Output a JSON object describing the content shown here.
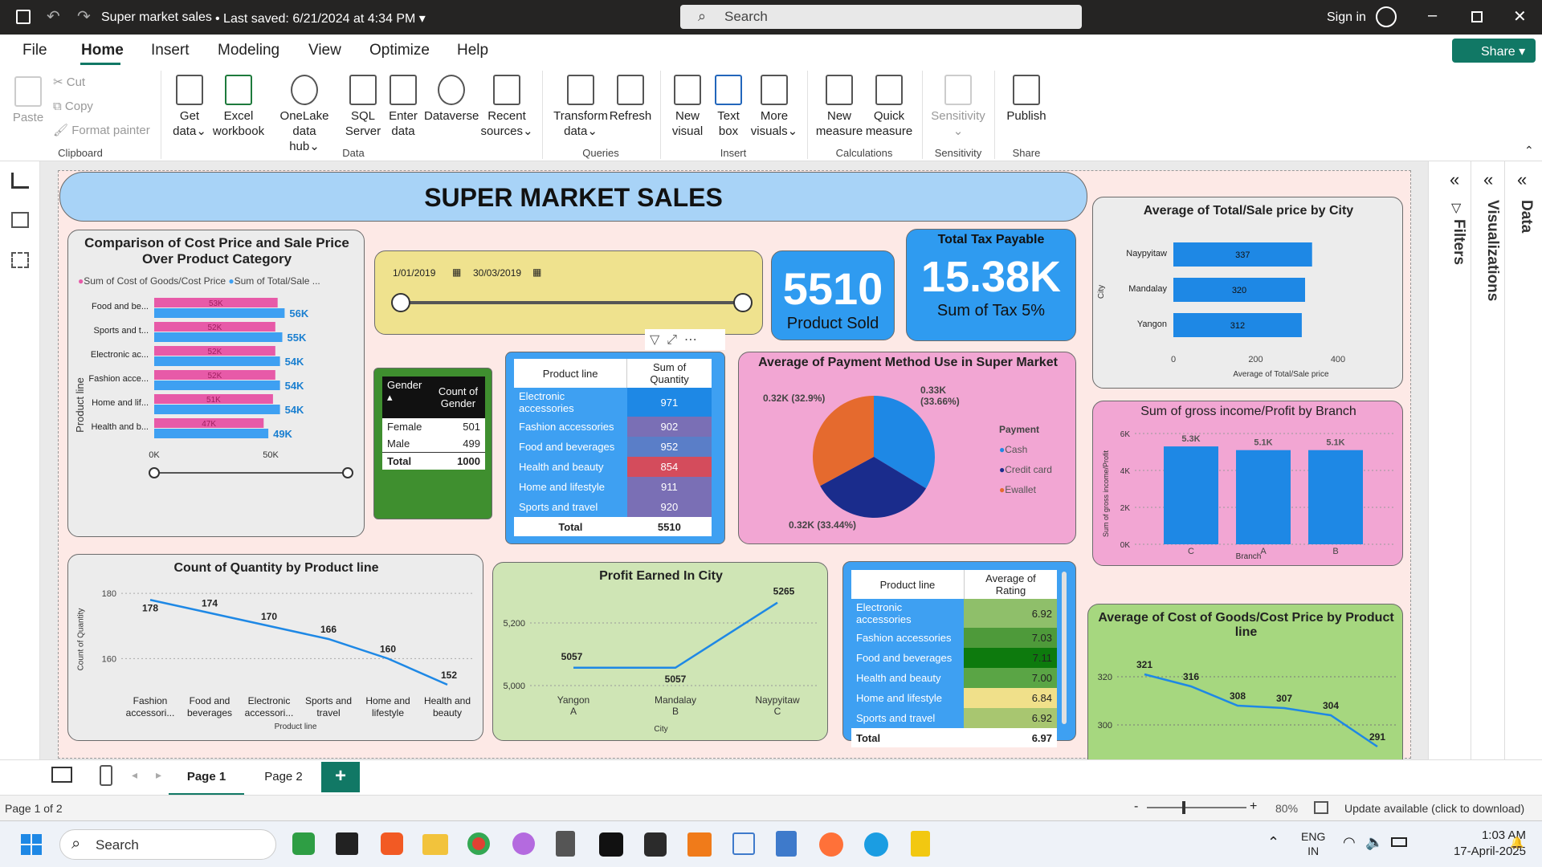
{
  "titlebar": {
    "title": "Super market sales",
    "saved": "Last saved: 6/21/2024 at 4:34 PM",
    "search": "Search",
    "signin": "Sign in"
  },
  "menu": {
    "items": [
      "File",
      "Home",
      "Insert",
      "Modeling",
      "View",
      "Optimize",
      "Help"
    ],
    "share": "Share"
  },
  "ribbon": {
    "clipboard": {
      "paste": "Paste",
      "cut": "Cut",
      "copy": "Copy",
      "format": "Format painter",
      "group": "Clipboard"
    },
    "data": {
      "get": "Get",
      "get2": "data",
      "excel": "Excel",
      "excel2": "workbook",
      "onelake": "OneLake data",
      "onelake2": "hub",
      "sql": "SQL",
      "sql2": "Server",
      "enter": "Enter",
      "enter2": "data",
      "dataverse": "Dataverse",
      "recent": "Recent",
      "recent2": "sources",
      "group": "Data"
    },
    "queries": {
      "transform": "Transform",
      "transform2": "data",
      "refresh": "Refresh",
      "group": "Queries"
    },
    "insert": {
      "newv": "New",
      "newv2": "visual",
      "text": "Text",
      "text2": "box",
      "more": "More",
      "more2": "visuals",
      "group": "Insert"
    },
    "calc": {
      "newm": "New",
      "newm2": "measure",
      "quick": "Quick",
      "quick2": "measure",
      "group": "Calculations"
    },
    "sens": {
      "label": "Sensitivity",
      "group": "Sensitivity"
    },
    "share": {
      "publish": "Publish",
      "group": "Share"
    }
  },
  "report": {
    "title": "SUPER MARKET SALES",
    "slicer": {
      "from": "1/01/2019",
      "to": "30/03/2019"
    },
    "kpi1": {
      "value": "5510",
      "label": "Product Sold"
    },
    "kpi2": {
      "title": "Total Tax Payable",
      "value": "15.38K",
      "label": "Sum of Tax 5%"
    },
    "costsale": {
      "title": "Comparison of Cost Price and Sale Price Over Product Category",
      "legend1": "Sum of Cost of Goods/Cost Price",
      "legend2": "Sum of Total/Sale ...",
      "ylabel": "Product line",
      "xticks": [
        "0K",
        "50K"
      ],
      "rows": [
        {
          "cat": "Food and be...",
          "a": "53K",
          "b": "56K",
          "av": 53,
          "bv": 56
        },
        {
          "cat": "Sports and t...",
          "a": "52K",
          "b": "55K",
          "av": 52,
          "bv": 55
        },
        {
          "cat": "Electronic ac...",
          "a": "52K",
          "b": "54K",
          "av": 52,
          "bv": 54
        },
        {
          "cat": "Fashion acce...",
          "a": "52K",
          "b": "54K",
          "av": 52,
          "bv": 54
        },
        {
          "cat": "Home and lif...",
          "a": "51K",
          "b": "54K",
          "av": 51,
          "bv": 54
        },
        {
          "cat": "Health and b...",
          "a": "47K",
          "b": "49K",
          "av": 47,
          "bv": 49
        }
      ]
    },
    "gender": {
      "h1": "Gender",
      "h2": "Count of",
      "h2b": "Gender",
      "rows": [
        [
          "Female",
          "501"
        ],
        [
          "Male",
          "499"
        ]
      ],
      "total": [
        "Total",
        "1000"
      ]
    },
    "qty": {
      "h1": "Product line",
      "h2": "Sum of Quantity",
      "rows": [
        [
          "Electronic accessories",
          "971",
          "#1e88e5"
        ],
        [
          "Fashion accessories",
          "902",
          "#7a6fb5"
        ],
        [
          "Food and beverages",
          "952",
          "#5a7ec8"
        ],
        [
          "Health and beauty",
          "854",
          "#d44c5c"
        ],
        [
          "Home and lifestyle",
          "911",
          "#7a6fb5"
        ],
        [
          "Sports and travel",
          "920",
          "#7a6fb5"
        ]
      ],
      "total": [
        "Total",
        "5510"
      ]
    },
    "payment": {
      "title": "Average of Payment Method Use in Super Market",
      "legend_title": "Payment",
      "labels": [
        "Cash",
        "Credit card",
        "Ewallet"
      ],
      "l1": "0.32K (32.9%)",
      "l2": "0.33K",
      "l2b": "(33.66%)",
      "l3": "0.32K (33.44%)"
    },
    "city": {
      "title": "Average of Total/Sale price by City",
      "ylabel": "City",
      "xlabel": "Average of Total/Sale price",
      "xticks": [
        "0",
        "200",
        "400"
      ],
      "rows": [
        {
          "c": "Naypyitaw",
          "v": "337",
          "n": 337
        },
        {
          "c": "Mandalay",
          "v": "320",
          "n": 320
        },
        {
          "c": "Yangon",
          "v": "312",
          "n": 312
        }
      ]
    },
    "gross": {
      "title": "Sum of gross income/Profit by Branch",
      "ylabel": "Sum of gross income/Profit",
      "xlabel": "Branch",
      "yticks": [
        "6K",
        "4K",
        "2K",
        "0K"
      ],
      "bars": [
        {
          "b": "C",
          "v": "5.3K",
          "n": 5.3
        },
        {
          "b": "A",
          "v": "5.1K",
          "n": 5.1
        },
        {
          "b": "B",
          "v": "5.1K",
          "n": 5.1
        }
      ]
    },
    "countq": {
      "title": "Count of Quantity by Product line",
      "ylabel": "Count of Quantity",
      "xlabel": "Product line",
      "yticks": [
        "180",
        "160"
      ],
      "pts": [
        {
          "x1": "Fashion",
          "x2": "accessori...",
          "v": 178
        },
        {
          "x1": "Food and",
          "x2": "beverages",
          "v": 174
        },
        {
          "x1": "Electronic",
          "x2": "accessori...",
          "v": 170
        },
        {
          "x1": "Sports and",
          "x2": "travel",
          "v": 166
        },
        {
          "x1": "Home and",
          "x2": "lifestyle",
          "v": 160
        },
        {
          "x1": "Health and",
          "x2": "beauty",
          "v": 152
        }
      ]
    },
    "profit": {
      "title": "Profit Earned In City",
      "xlabel": "City",
      "yticks": [
        "5,200",
        "5,000"
      ],
      "pts": [
        {
          "c": "Yangon",
          "b": "A",
          "v": 5057
        },
        {
          "c": "Mandalay",
          "b": "B",
          "v": 5057
        },
        {
          "c": "Naypyitaw",
          "b": "C",
          "v": 5265
        }
      ]
    },
    "rating": {
      "h1": "Product line",
      "h2": "Average of Rating",
      "rows": [
        [
          "Electronic accessories",
          "6.92",
          "#8fbf6a"
        ],
        [
          "Fashion accessories",
          "7.03",
          "#4e9a3a"
        ],
        [
          "Food and beverages",
          "7.11",
          "#0d7a0d"
        ],
        [
          "Health and beauty",
          "7.00",
          "#5aa545"
        ],
        [
          "Home and lifestyle",
          "6.84",
          "#f0e08a"
        ],
        [
          "Sports and travel",
          "6.92",
          "#a8c670"
        ]
      ],
      "total": [
        "Total",
        "6.97"
      ]
    },
    "avgcost": {
      "title": "Average of Cost of Goods/Cost Price by Product line",
      "yticks": [
        "320",
        "300"
      ],
      "pts": [
        {
          "v": "321",
          "n": 321
        },
        {
          "v": "316",
          "n": 316
        },
        {
          "v": "308",
          "n": 308
        },
        {
          "v": "307",
          "n": 307
        },
        {
          "v": "304",
          "n": 304
        },
        {
          "v": "291",
          "n": 291
        }
      ]
    }
  },
  "panes": {
    "filters": "Filters",
    "visualizations": "Visualizations",
    "data": "Data"
  },
  "tabs": {
    "p1": "Page 1",
    "p2": "Page 2",
    "add": "+"
  },
  "status": {
    "page": "Page 1 of 2",
    "zoom": "80%",
    "update": "Update available (click to download)"
  },
  "taskbar": {
    "search": "Search",
    "lang1": "ENG",
    "lang2": "IN",
    "time": "1:03 AM",
    "date": "17-April-2025"
  }
}
